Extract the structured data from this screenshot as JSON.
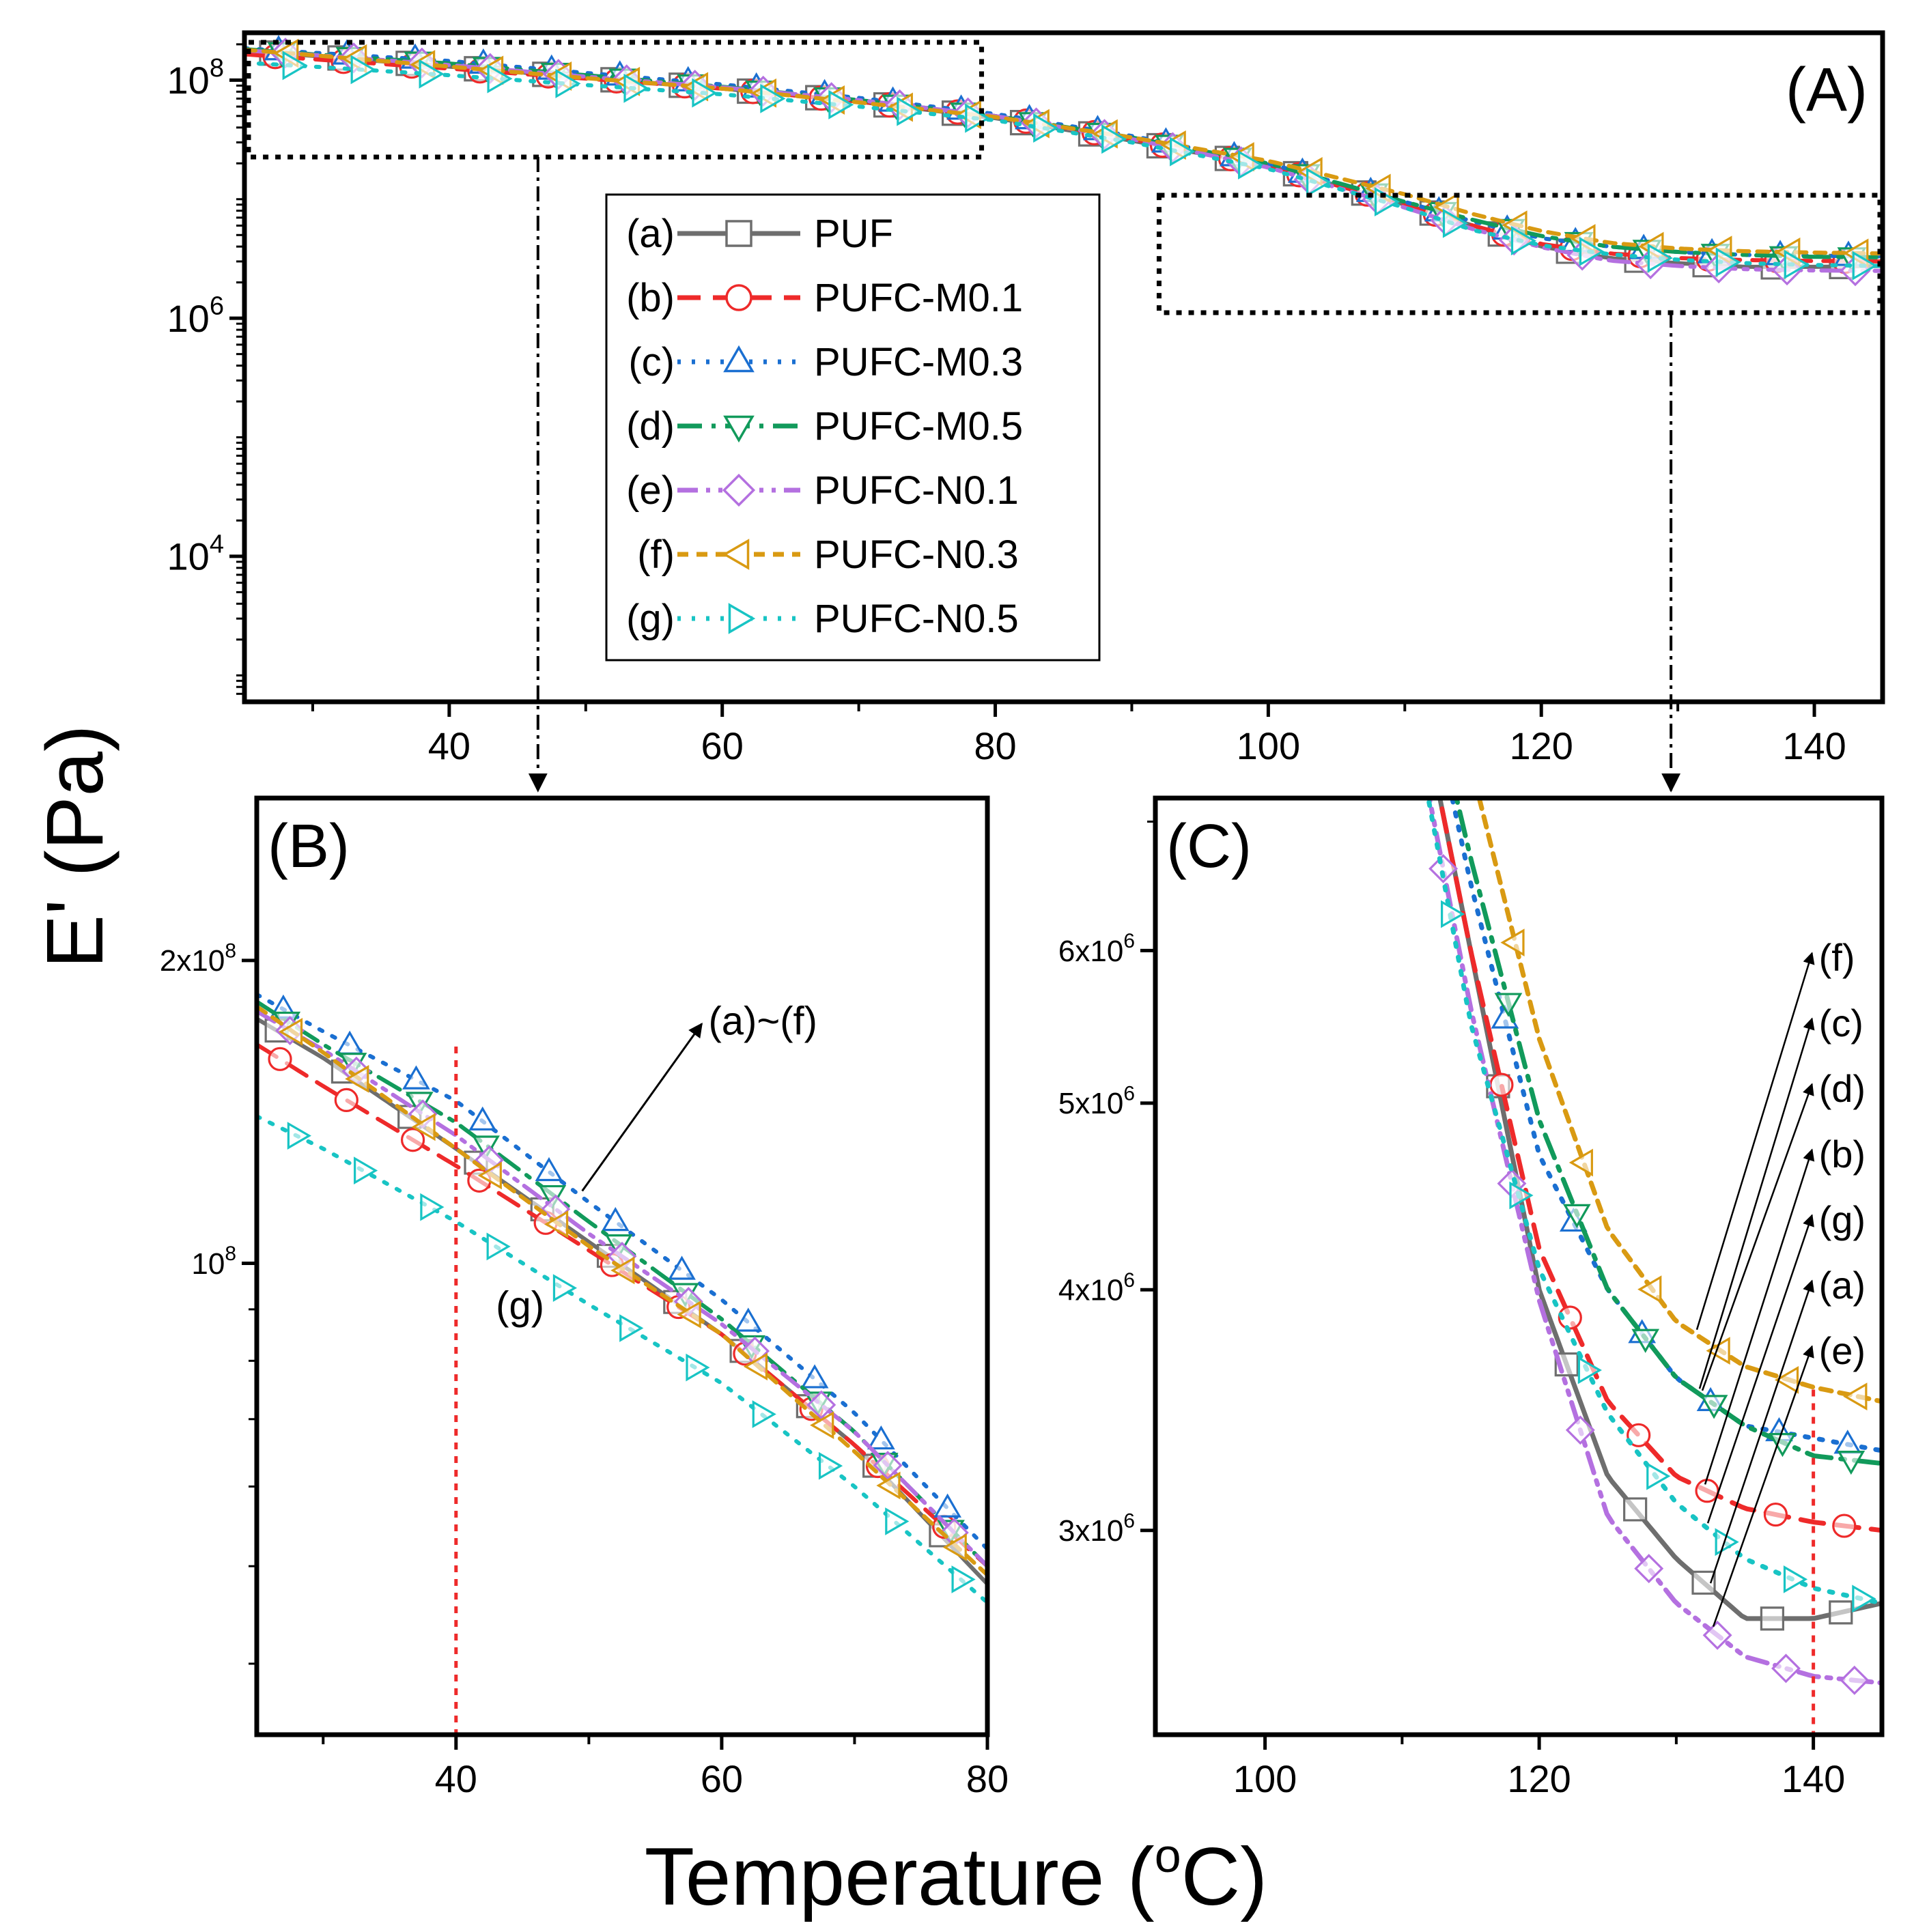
{
  "figure": {
    "ylabel": "E' (Pa)",
    "xlabel": "Temperature (",
    "xlabel_sup": "o",
    "xlabel_end": "C)"
  },
  "chart_data": [
    {
      "type": "line",
      "panel": "(A)",
      "yscale": "log",
      "xlim": [
        25,
        145
      ],
      "ylim": [
        600,
        250000000
      ],
      "xticks": [
        "40",
        "60",
        "80",
        "100",
        "120",
        "140"
      ],
      "yticks": [
        {
          "base": "10",
          "exp": "4",
          "value": 10000
        },
        {
          "base": "10",
          "exp": "6",
          "value": 1000000
        },
        {
          "base": "10",
          "exp": "8",
          "value": 100000000
        }
      ],
      "zoom_boxes": [
        "(B)",
        "(C)"
      ],
      "legend": {
        "placement": "center"
      },
      "series": [
        {
          "id": "a",
          "label": "(a)",
          "name": "PUF",
          "marker": "square",
          "color": "#6e6e6e",
          "line": "solid",
          "x": [
            25,
            30,
            40,
            50,
            60,
            70,
            80,
            90,
            100,
            110,
            115,
            120,
            125,
            130,
            135,
            140,
            145
          ],
          "values": [
            175000000,
            160000000,
            130000000,
            105000000,
            85000000,
            66000000,
            48000000,
            31000000,
            19000000,
            9000000,
            6000000,
            4000000,
            3200000,
            2900000,
            2700000,
            2700000,
            2750000
          ]
        },
        {
          "id": "b",
          "label": "(b)",
          "name": "PUFC-M0.1",
          "marker": "circle",
          "color": "#ee2a2a",
          "line": "dash",
          "x": [
            25,
            30,
            40,
            50,
            60,
            70,
            80,
            90,
            100,
            110,
            115,
            120,
            125,
            130,
            135,
            140,
            145
          ],
          "values": [
            165000000,
            150000000,
            125000000,
            103000000,
            85000000,
            66000000,
            50000000,
            32000000,
            19000000,
            9000000,
            6000000,
            4200000,
            3500000,
            3200000,
            3080000,
            3030000,
            3000000
          ]
        },
        {
          "id": "c",
          "label": "(c)",
          "name": "PUFC-M0.3",
          "marker": "triangle-up",
          "color": "#1a6fd1",
          "line": "dot",
          "x": [
            25,
            30,
            40,
            50,
            60,
            70,
            80,
            90,
            100,
            110,
            115,
            120,
            125,
            130,
            135,
            140,
            145
          ],
          "values": [
            185000000,
            170000000,
            145000000,
            115000000,
            92000000,
            71000000,
            52000000,
            34000000,
            20000000,
            9500000,
            6500000,
            4700000,
            4000000,
            3600000,
            3400000,
            3350000,
            3300000
          ]
        },
        {
          "id": "d",
          "label": "(d)",
          "name": "PUFC-M0.5",
          "marker": "triangle-down",
          "color": "#119a5b",
          "line": "dashdot",
          "x": [
            25,
            30,
            40,
            50,
            60,
            70,
            80,
            90,
            100,
            110,
            115,
            120,
            125,
            130,
            135,
            140,
            145
          ],
          "values": [
            182000000,
            165000000,
            138000000,
            110000000,
            88000000,
            68000000,
            50000000,
            33000000,
            20000000,
            9500000,
            6700000,
            4900000,
            4000000,
            3600000,
            3400000,
            3280000,
            3250000
          ]
        },
        {
          "id": "e",
          "label": "(e)",
          "name": "PUFC-N0.1",
          "marker": "diamond",
          "color": "#b470e0",
          "line": "dashdotdot",
          "x": [
            25,
            30,
            40,
            50,
            60,
            70,
            80,
            90,
            100,
            110,
            115,
            120,
            125,
            130,
            135,
            140,
            145
          ],
          "values": [
            178000000,
            163000000,
            134000000,
            107000000,
            87000000,
            68000000,
            50000000,
            32000000,
            18500000,
            8500000,
            5600000,
            3950000,
            3050000,
            2750000,
            2580000,
            2520000,
            2500000
          ]
        },
        {
          "id": "f",
          "label": "(f)",
          "name": "PUFC-N0.3",
          "marker": "triangle-left",
          "color": "#d99a12",
          "line": "shortdash",
          "x": [
            25,
            30,
            40,
            50,
            60,
            70,
            80,
            90,
            100,
            110,
            115,
            120,
            125,
            130,
            135,
            140,
            145
          ],
          "values": [
            180000000,
            162000000,
            130000000,
            104000000,
            85000000,
            65000000,
            49000000,
            33000000,
            21000000,
            11000000,
            7500000,
            5400000,
            4300000,
            3850000,
            3650000,
            3560000,
            3500000
          ]
        },
        {
          "id": "g",
          "label": "(g)",
          "name": "PUFC-N0.5",
          "marker": "triangle-right",
          "color": "#18c4c4",
          "line": "dot",
          "x": [
            25,
            30,
            40,
            50,
            60,
            70,
            80,
            90,
            100,
            110,
            115,
            120,
            125,
            130,
            135,
            140,
            145
          ],
          "values": [
            140000000,
            130000000,
            110000000,
            91000000,
            76000000,
            60000000,
            46000000,
            30000000,
            18000000,
            8500000,
            5500000,
            4100000,
            3450000,
            3100000,
            2900000,
            2800000,
            2750000
          ]
        }
      ]
    },
    {
      "type": "line",
      "panel": "(B)",
      "yscale": "log",
      "xlim": [
        25,
        80
      ],
      "ylim": [
        34000000,
        290000000
      ],
      "xticks": [
        "40",
        "60",
        "80"
      ],
      "yticks": [
        {
          "base": "10",
          "exp": "8",
          "coef": "",
          "value": 100000000
        },
        {
          "base": "10",
          "exp": "8",
          "coef": "2x",
          "value": 200000000
        }
      ],
      "reference_line_x": 40,
      "annotations": [
        "(a)~(f)",
        "(g)"
      ],
      "uses_series_from": "(A)"
    },
    {
      "type": "line",
      "panel": "(C)",
      "yscale": "log",
      "xlim": [
        92,
        145
      ],
      "ylim": [
        2350000,
        7200000
      ],
      "xticks": [
        "100",
        "120",
        "140"
      ],
      "yticks": [
        {
          "base": "10",
          "exp": "6",
          "coef": "3x",
          "value": 3000000
        },
        {
          "base": "10",
          "exp": "6",
          "coef": "4x",
          "value": 4000000
        },
        {
          "base": "10",
          "exp": "6",
          "coef": "5x",
          "value": 5000000
        },
        {
          "base": "10",
          "exp": "6",
          "coef": "6x",
          "value": 6000000
        }
      ],
      "reference_line_x": 140,
      "order_labels": [
        "(f)",
        "(c)",
        "(d)",
        "(b)",
        "(g)",
        "(a)",
        "(e)"
      ],
      "uses_series_from": "(A)"
    }
  ]
}
